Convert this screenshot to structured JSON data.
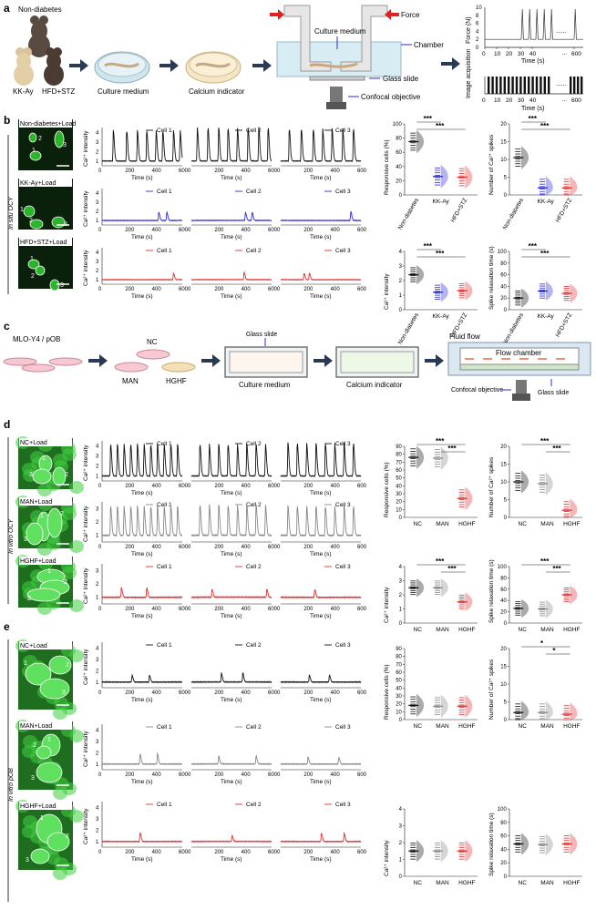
{
  "panels": {
    "a": {
      "letter": "a",
      "mice": [
        "Non-diabetes",
        "KK-Ay",
        "HFD+STZ"
      ],
      "steps": [
        "Culture medium",
        "Calcium indicator"
      ],
      "setup": {
        "force": "Force",
        "medium": "Culture medium",
        "chamber": "Chamber",
        "slide": "Glass slide",
        "objective": "Confocal objective"
      },
      "force_plot": {
        "ylabel": "Force (N)",
        "xlabel": "Time (s)",
        "xticks": [
          "0",
          "10",
          "20",
          "30",
          "40",
          "600"
        ],
        "yticks": [
          "0",
          "2",
          "4",
          "6",
          "8",
          "10"
        ],
        "dots": "......",
        "ellipsis": "..."
      },
      "image_plot": {
        "ylabel": "Image acquisition",
        "xlabel": "Time (s)",
        "xticks": [
          "0",
          "10",
          "20",
          "30",
          "40",
          "600"
        ],
        "dots": "......",
        "ellipsis": "..."
      }
    },
    "b": {
      "letter": "b",
      "side_label": "In situ OCY"
    },
    "c": {
      "letter": "c",
      "cells": "MLO-Y4 / pOB",
      "groups": [
        "NC",
        "MAN",
        "HGHF"
      ],
      "steps": [
        "Culture medium",
        "Calcium indicator"
      ],
      "glass_slide_top": "Glass slide",
      "flow": {
        "fluid": "Fluid flow",
        "chamber": "Flow chamber",
        "objective": "Confocal objective",
        "slide": "Glass slide"
      }
    },
    "d": {
      "letter": "d",
      "side_label": "In vitro OCY"
    },
    "e": {
      "letter": "e",
      "side_label": "In vitro pOB"
    }
  },
  "common": {
    "time_label": "Time (s)",
    "ca_label": "Ca²⁺ intensity",
    "trace_xticks": [
      "0",
      "200",
      "400",
      "600"
    ],
    "cells": [
      "Cell 1",
      "Cell 2",
      "Cell 3"
    ],
    "sig": "***",
    "sig_single": "*"
  },
  "chart_data": [
    {
      "panel": "b",
      "type": "line",
      "rows": [
        {
          "group": "Non-diabetes+Load",
          "color": "#111111",
          "yticks": [
            "1",
            "2",
            "3",
            "4"
          ],
          "ylim": [
            0.5,
            4.5
          ],
          "peaks": [
            [
              80,
              180,
              260,
              330,
              400,
              450,
              530,
              580
            ],
            [
              40,
              120,
              200,
              270,
              340,
              420,
              500,
              570
            ],
            [
              60,
              150,
              240,
              310,
              380,
              460,
              540
            ]
          ],
          "peak_height": [
            3.2,
            3.5,
            3.4
          ]
        },
        {
          "group": "KK-Ay+Load",
          "color": "#2a2ad6",
          "yticks": [
            "1",
            "2",
            "3",
            "4"
          ],
          "ylim": [
            0.5,
            4.5
          ],
          "peaks": [
            [
              420,
              480
            ],
            [
              400,
              450
            ],
            [
              520
            ]
          ],
          "peak_height": [
            0.9,
            0.9,
            1.0
          ]
        },
        {
          "group": "HFD+STZ+Load",
          "color": "#e03030",
          "yticks": [
            "1",
            "2",
            "3",
            "4"
          ],
          "ylim": [
            0.5,
            4.5
          ],
          "peaks": [
            [
              530
            ],
            [
              390
            ],
            [
              170,
              210
            ]
          ],
          "peak_height": [
            0.7,
            0.8,
            0.7
          ]
        }
      ]
    },
    {
      "panel": "b",
      "type": "scatter",
      "plots": [
        {
          "ylabel": "Responsive cells (%)",
          "yticks": [
            "0",
            "20",
            "40",
            "60",
            "80",
            "100"
          ],
          "ylim": [
            0,
            100
          ],
          "groups": [
            "Non-diabetes",
            "KK-Ay",
            "HFD+STZ"
          ],
          "means": [
            75,
            26,
            25
          ],
          "sig": [
            [
              0,
              1
            ],
            [
              0,
              2
            ]
          ]
        },
        {
          "ylabel": "Number of Ca²⁺ spikes",
          "yticks": [
            "0",
            "5",
            "10",
            "15",
            "20"
          ],
          "ylim": [
            0,
            20
          ],
          "groups": [
            "Non-diabetes",
            "KK-Ay",
            "HFD+STZ"
          ],
          "means": [
            10.5,
            2,
            2
          ],
          "sig": [
            [
              0,
              1
            ],
            [
              0,
              2
            ]
          ]
        },
        {
          "ylabel": "Ca²⁺ intensity",
          "yticks": [
            "0",
            "1",
            "2",
            "3",
            "4"
          ],
          "ylim": [
            0,
            4
          ],
          "groups": [
            "Non-diabetes",
            "KK-Ay",
            "HFD+STZ"
          ],
          "means": [
            2.4,
            1.2,
            1.3
          ],
          "sig": [
            [
              0,
              1
            ],
            [
              0,
              2
            ]
          ]
        },
        {
          "ylabel": "Spike relaxation time (s)",
          "yticks": [
            "0",
            "20",
            "40",
            "60",
            "80",
            "100"
          ],
          "ylim": [
            0,
            100
          ],
          "groups": [
            "Non-diabetes",
            "KK-Ay",
            "HFD+STZ"
          ],
          "means": [
            20,
            32,
            28
          ],
          "sig": [
            [
              0,
              1
            ],
            [
              0,
              2
            ]
          ]
        }
      ]
    },
    {
      "panel": "d",
      "type": "line",
      "rows": [
        {
          "group": "NC+Load",
          "color": "#111111",
          "yticks": [
            "1",
            "2",
            "3",
            "4"
          ],
          "ylim": [
            0.5,
            4.5
          ],
          "peaks": [
            [
              60,
              110,
              160,
              210,
              260,
              310,
              360,
              410,
              460,
              510,
              560
            ],
            [
              60,
              130,
              200,
              270,
              340,
              410,
              480,
              550
            ],
            [
              50,
              120,
              190,
              260,
              330,
              400,
              470,
              540
            ]
          ],
          "peak_height": [
            3.2,
            3.2,
            3.3
          ]
        },
        {
          "group": "MAN+Load",
          "color": "#888888",
          "yticks": [
            "1",
            "2",
            "3"
          ],
          "ylim": [
            0.5,
            3.5
          ],
          "peaks": [
            [
              60,
              110,
              160,
              210,
              260,
              310,
              360,
              410,
              460,
              510,
              560
            ],
            [
              60,
              130,
              200,
              270,
              340,
              410,
              480,
              550
            ],
            [
              50,
              120,
              190,
              260,
              330,
              400,
              470,
              540
            ]
          ],
          "peak_height": [
            2.2,
            2.3,
            2.2
          ]
        },
        {
          "group": "HGHF+Load",
          "color": "#e03030",
          "yticks": [
            "1",
            "2",
            "3"
          ],
          "ylim": [
            0.5,
            3.5
          ],
          "peaks": [
            [
              140,
              330
            ],
            [
              150,
              560
            ],
            [
              250
            ]
          ],
          "peak_height": [
            0.7,
            0.6,
            0.6
          ]
        }
      ]
    },
    {
      "panel": "d",
      "type": "scatter",
      "plots": [
        {
          "ylabel": "Responsive cells (%)",
          "yticks": [
            "0",
            "10",
            "20",
            "30",
            "40",
            "50",
            "60",
            "70",
            "80",
            "90"
          ],
          "ylim": [
            0,
            90
          ],
          "groups": [
            "NC",
            "MAN",
            "HGHF"
          ],
          "means": [
            76,
            75,
            24
          ],
          "sig": [
            [
              0,
              2
            ],
            [
              1,
              2
            ]
          ]
        },
        {
          "ylabel": "Number of Ca²⁺ spikes",
          "yticks": [
            "0",
            "5",
            "10",
            "15",
            "20"
          ],
          "ylim": [
            0,
            20
          ],
          "groups": [
            "NC",
            "MAN",
            "HGHF"
          ],
          "means": [
            10,
            9.5,
            2
          ],
          "sig": [
            [
              0,
              2
            ],
            [
              1,
              2
            ]
          ]
        },
        {
          "ylabel": "Ca²⁺ intensity",
          "yticks": [
            "0",
            "1",
            "2",
            "3",
            "4"
          ],
          "ylim": [
            0,
            4
          ],
          "groups": [
            "NC",
            "MAN",
            "HGHF"
          ],
          "means": [
            2.5,
            2.5,
            1.5
          ],
          "sig": [
            [
              0,
              2
            ],
            [
              1,
              2
            ]
          ]
        },
        {
          "ylabel": "Spike relaxation time (s)",
          "yticks": [
            "0",
            "20",
            "40",
            "60",
            "80",
            "100"
          ],
          "ylim": [
            0,
            100
          ],
          "groups": [
            "NC",
            "MAN",
            "HGHF"
          ],
          "means": [
            26,
            25,
            50
          ],
          "sig": [
            [
              0,
              2
            ],
            [
              1,
              2
            ]
          ]
        }
      ]
    },
    {
      "panel": "e",
      "type": "line",
      "rows": [
        {
          "group": "NC+Load",
          "color": "#111111",
          "yticks": [
            "1",
            "2",
            "3",
            "4"
          ],
          "ylim": [
            0.5,
            4.5
          ],
          "peaks": [
            [
              220,
              350
            ],
            [
              220,
              380
            ],
            [
              210,
              360
            ]
          ],
          "peak_height": [
            0.6,
            0.8,
            0.6
          ]
        },
        {
          "group": "MAN+Load",
          "color": "#888888",
          "yticks": [
            "1",
            "2",
            "3",
            "4"
          ],
          "ylim": [
            0.5,
            4.5
          ],
          "peaks": [
            [
              280,
              410
            ],
            [
              200,
              480
            ],
            [
              200,
              430
            ]
          ],
          "peak_height": [
            0.9,
            0.7,
            0.6
          ]
        },
        {
          "group": "HGHF+Load",
          "color": "#e03030",
          "yticks": [
            "1",
            "2",
            "3",
            "4"
          ],
          "ylim": [
            0.5,
            4.5
          ],
          "peaks": [
            [
              280
            ],
            [
              300
            ],
            [
              300,
              470
            ]
          ],
          "peak_height": [
            0.8,
            0.5,
            0.7
          ]
        }
      ]
    },
    {
      "panel": "e",
      "type": "scatter",
      "plots": [
        {
          "ylabel": "Responsive cells (%)",
          "yticks": [
            "0",
            "10",
            "20",
            "30",
            "40",
            "50",
            "60",
            "70",
            "80",
            "90"
          ],
          "ylim": [
            0,
            90
          ],
          "groups": [
            "NC",
            "MAN",
            "HGHF"
          ],
          "means": [
            18,
            17,
            17
          ],
          "sig": []
        },
        {
          "ylabel": "Number of Ca²⁺ spikes",
          "yticks": [
            "0",
            "5",
            "10",
            "15",
            "20"
          ],
          "ylim": [
            0,
            20
          ],
          "groups": [
            "NC",
            "MAN",
            "HGHF"
          ],
          "means": [
            2,
            2,
            1.5
          ],
          "sig": [
            [
              0,
              2
            ],
            [
              1,
              2
            ]
          ],
          "sig_label": "*"
        },
        {
          "ylabel": "Ca²⁺ intensity",
          "yticks": [
            "0",
            "1",
            "2",
            "3",
            "4"
          ],
          "ylim": [
            0,
            4
          ],
          "groups": [
            "NC",
            "MAN",
            "HGHF"
          ],
          "means": [
            1.5,
            1.5,
            1.5
          ],
          "sig": []
        },
        {
          "ylabel": "Spike relaxation time (s)",
          "yticks": [
            "0",
            "20",
            "40",
            "60",
            "80",
            "100"
          ],
          "ylim": [
            0,
            100
          ],
          "groups": [
            "NC",
            "MAN",
            "HGHF"
          ],
          "means": [
            48,
            47,
            48
          ],
          "sig": []
        }
      ]
    }
  ],
  "colors": {
    "black": "#111111",
    "blue": "#2a2ad6",
    "red": "#e03030",
    "gray": "#888888",
    "arrow": "#2a3a55",
    "cell_green": "#2bb52b",
    "dark_green": "#0e3a0e"
  }
}
